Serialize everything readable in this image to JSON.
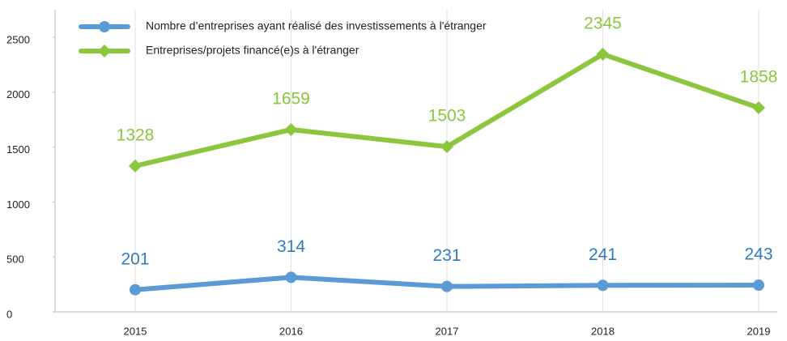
{
  "chart_data": {
    "type": "line",
    "categories": [
      "2015",
      "2016",
      "2017",
      "2018",
      "2019"
    ],
    "series": [
      {
        "name": "Nombre d’entreprises ayant réalisé des investissements à l'étranger",
        "color": "#5b9bd5",
        "label_color": "#2f7bbf",
        "marker": "circle",
        "values": [
          201,
          314,
          231,
          241,
          243
        ]
      },
      {
        "name": "Entreprises/projets financé(e)s à l'étranger",
        "color": "#8cc63e",
        "label_color": "#8cc63e",
        "marker": "diamond",
        "values": [
          1328,
          1659,
          1503,
          2345,
          1858
        ]
      }
    ],
    "ylim": [
      0,
      2750
    ],
    "yticks": [
      0,
      500,
      1000,
      1500,
      2000,
      2500
    ],
    "grid": "x",
    "legend": "top-left"
  }
}
